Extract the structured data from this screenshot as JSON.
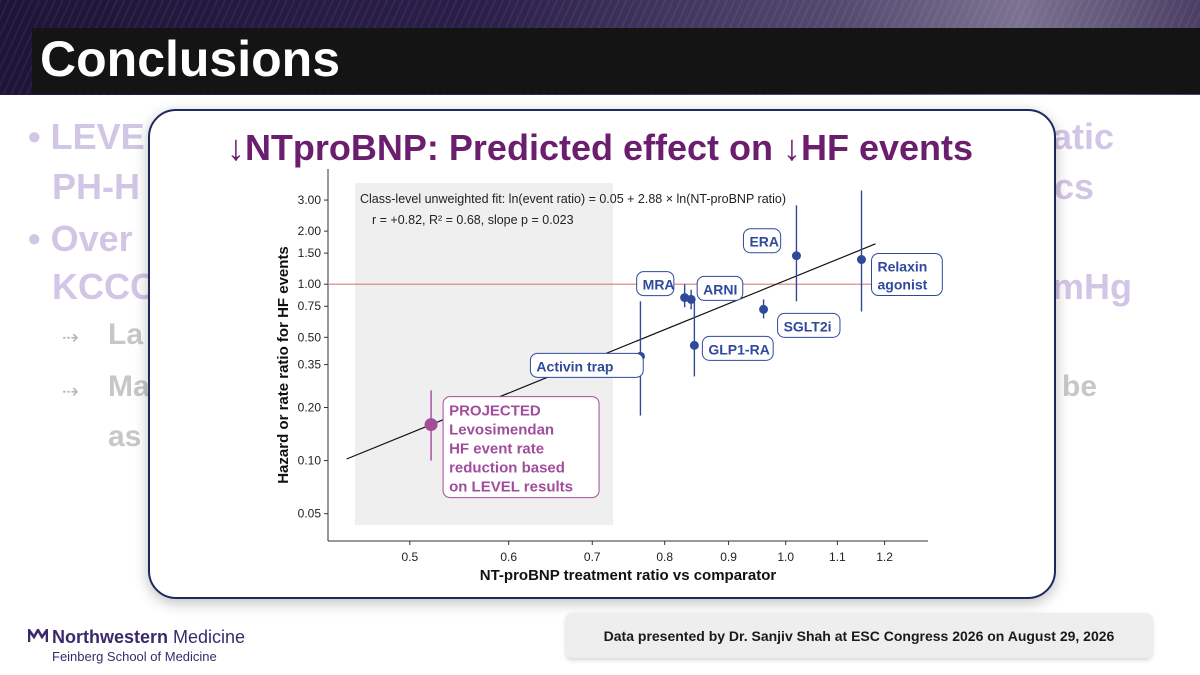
{
  "slide": {
    "title": "Conclusions",
    "bullets_visible": [
      {
        "left": "• LEVE",
        "right": "atic"
      },
      {
        "left": "PH-H",
        "right": "cs"
      },
      {
        "left": "• Over",
        "right": ""
      },
      {
        "left": "KCCC",
        "right": "mHg"
      }
    ],
    "sub_bullets_visible": [
      {
        "left": "La",
        "right": ""
      },
      {
        "left": "Ma",
        "right": "be"
      },
      {
        "left": "as",
        "right": ""
      }
    ],
    "sub_bullet_icon": "dashed-arrow-icon"
  },
  "chart_title": "↓NTproBNP: Predicted effect on ↓HF events",
  "chart_data": {
    "type": "scatter",
    "title": "↓NTproBNP: Predicted effect on ↓HF events",
    "xlabel": "NT-proBNP treatment ratio vs comparator",
    "ylabel": "Hazard or rate ratio for HF events",
    "x_scale": "log",
    "y_scale": "log",
    "x_ticks": [
      0.5,
      0.6,
      0.7,
      0.8,
      0.9,
      1.0,
      1.1,
      1.2
    ],
    "x_tick_labels": [
      "0.5",
      "0.6",
      "0.7",
      "0.8",
      "0.9",
      "1.0",
      "1.1",
      "1.2"
    ],
    "y_ticks": [
      0.05,
      0.1,
      0.2,
      0.35,
      0.5,
      0.75,
      1.0,
      1.5,
      2.0,
      3.0
    ],
    "y_tick_labels": [
      "0.05",
      "0.10",
      "0.20",
      "0.35",
      "0.50",
      "0.75",
      "1.00",
      "1.50",
      "2.00",
      "3.00"
    ],
    "xlim": [
      0.43,
      1.3
    ],
    "ylim": [
      0.035,
      4.5
    ],
    "reference_line_y": 1.0,
    "fit_line": {
      "intercept": 0.05,
      "slope": 2.88,
      "x_range": [
        0.445,
        1.18
      ]
    },
    "annotation_lines": [
      "Class-level unweighted fit:  ln(event ratio) = 0.05 + 2.88 × ln(NT-proBNP ratio)",
      "r = +0.82,  R² = 0.68,  slope p = 0.023"
    ],
    "points": [
      {
        "label": "Activin trap",
        "x": 0.765,
        "y": 0.39,
        "lo": 0.18,
        "hi": 0.8
      },
      {
        "label": "MRA",
        "x": 0.83,
        "y": 0.84,
        "lo": 0.74,
        "hi": 1.0
      },
      {
        "label": "ARNI",
        "x": 0.84,
        "y": 0.82,
        "lo": 0.72,
        "hi": 0.93
      },
      {
        "label": "GLP1-RA",
        "x": 0.845,
        "y": 0.45,
        "lo": 0.3,
        "hi": 0.8
      },
      {
        "label": "SGLT2i",
        "x": 0.96,
        "y": 0.72,
        "lo": 0.64,
        "hi": 0.82
      },
      {
        "label": "ERA",
        "x": 1.02,
        "y": 1.45,
        "lo": 0.8,
        "hi": 2.8
      },
      {
        "label": "Relaxin agonist",
        "x": 1.15,
        "y": 1.38,
        "lo": 0.7,
        "hi": 3.4
      },
      {
        "label": "PROJECTED Levosimendan HF event rate reduction based on LEVEL results",
        "x": 0.52,
        "y": 0.16,
        "lo": 0.1,
        "hi": 0.25,
        "projected": true
      }
    ],
    "projected_label_lines": [
      "PROJECTED",
      "Levosimendan",
      "HF event rate",
      "reduction based",
      "on LEVEL results"
    ],
    "relaxin_label_lines": [
      "Relaxin",
      "agonist"
    ],
    "colors": {
      "points": "#2f4a9c",
      "projected": "#a14d9c",
      "reference": "#e07a7a",
      "fit": "#111111",
      "shade": "#efefef"
    }
  },
  "footer": {
    "logo_main": "Northwestern",
    "logo_light": "Medicine",
    "logo_sub": "Feinberg School of Medicine",
    "note": "Data presented by Dr. Sanjiv Shah at ESC Congress 2026 on August 29, 2026"
  }
}
